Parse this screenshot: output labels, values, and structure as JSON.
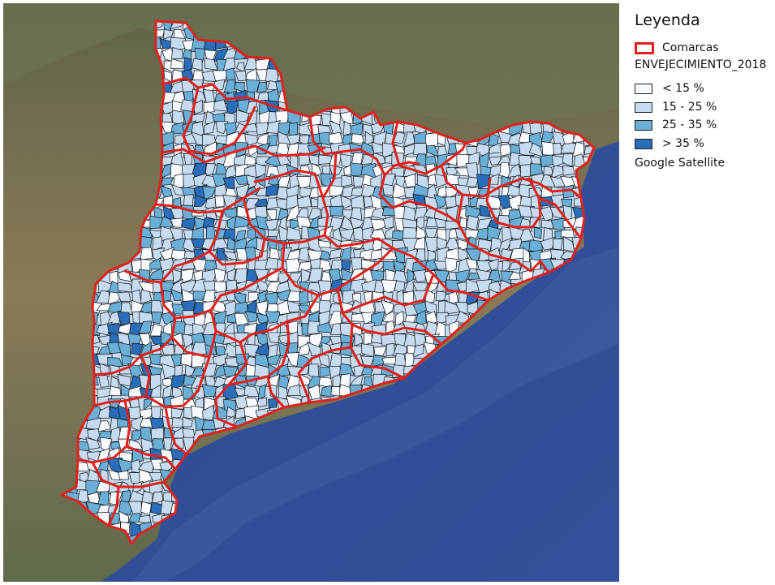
{
  "legend": {
    "title": "Leyenda",
    "comarcas_label": "Comarcas",
    "group_title": "ENVEJECIMIENTO_2018",
    "classes": [
      {
        "label": "< 15 %",
        "color": "#f7fbff"
      },
      {
        "label": "15 - 25 %",
        "color": "#c6dbef"
      },
      {
        "label": "25 - 35 %",
        "color": "#6baed6"
      },
      {
        "label": "> 35 %",
        "color": "#2a6db8"
      }
    ],
    "basemap_label": "Google Satellite"
  },
  "colors": {
    "comarca_border": "#e0211c",
    "municipality_border": "#111111",
    "sea": "#2c4890",
    "land": "#7f7355"
  }
}
